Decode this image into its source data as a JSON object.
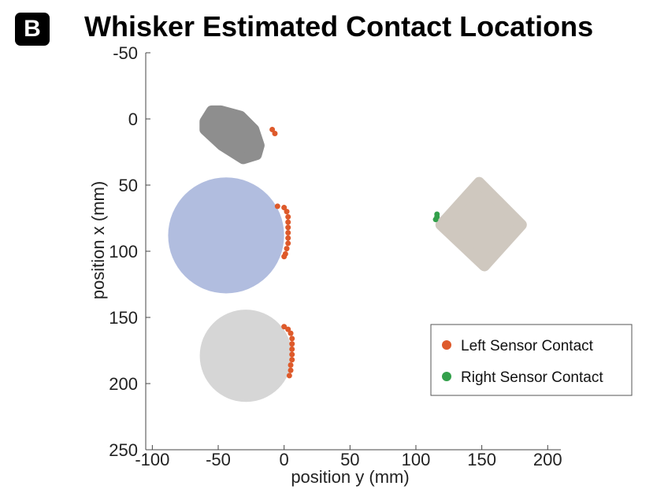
{
  "panel_label": "B",
  "chart_data": {
    "type": "scatter",
    "title": "Whisker Estimated Contact Locations",
    "xlabel": "position y (mm)",
    "ylabel": "position x (mm)",
    "xlim": [
      -105,
      210
    ],
    "ylim": [
      -50,
      250
    ],
    "y_inverted": true,
    "xticks": [
      -100,
      -50,
      0,
      50,
      100,
      150,
      200
    ],
    "yticks": [
      -50,
      0,
      50,
      100,
      150,
      200,
      250
    ],
    "xtick_labels": [
      "-100",
      "-50",
      "0",
      "50",
      "100",
      "150",
      "200"
    ],
    "ytick_labels": [
      "-50",
      "0",
      "50",
      "100",
      "150",
      "200",
      "250"
    ],
    "grid": false,
    "legend_position": "lower-right",
    "objects": [
      {
        "shape": "polygon",
        "color": "#8e8e8e",
        "vertices": [
          [
            -60,
            2
          ],
          [
            -55,
            -6
          ],
          [
            -48,
            -6
          ],
          [
            -33,
            -2
          ],
          [
            -23,
            8
          ],
          [
            -19,
            20
          ],
          [
            -21,
            27
          ],
          [
            -31,
            30
          ],
          [
            -47,
            20
          ],
          [
            -60,
            8
          ]
        ]
      },
      {
        "shape": "circle",
        "color": "#b1bddf",
        "center": [
          -44,
          88
        ],
        "radius": 44
      },
      {
        "shape": "circle",
        "color": "#d6d6d6",
        "center": [
          -29,
          179
        ],
        "radius": 35
      },
      {
        "shape": "polygon",
        "color": "#cfc8bf",
        "vertices": [
          [
            148,
            48
          ],
          [
            180,
            80
          ],
          [
            152,
            111
          ],
          [
            119,
            80
          ]
        ]
      }
    ],
    "series": [
      {
        "name": "Left Sensor Contact",
        "color": "#de5a2b",
        "x": [
          -9,
          -8,
          -7,
          -6,
          -5,
          -6,
          -7,
          -8,
          -9,
          -10,
          -9,
          -7,
          -6
        ],
        "y": [
          8,
          10,
          12,
          66,
          68,
          71,
          74,
          77,
          80,
          83,
          86,
          89,
          92
        ],
        "points": [
          [
            -9,
            8
          ],
          [
            -7,
            11
          ],
          [
            -5,
            66
          ],
          [
            0,
            67
          ],
          [
            2,
            70
          ],
          [
            3,
            74
          ],
          [
            3,
            78
          ],
          [
            3,
            82
          ],
          [
            3,
            86
          ],
          [
            3,
            90
          ],
          [
            3,
            94
          ],
          [
            2,
            98
          ],
          [
            1,
            102
          ],
          [
            0,
            104
          ],
          [
            0,
            157
          ],
          [
            3,
            159
          ],
          [
            5,
            162
          ],
          [
            6,
            166
          ],
          [
            6,
            170
          ],
          [
            6,
            174
          ],
          [
            6,
            178
          ],
          [
            6,
            182
          ],
          [
            5,
            186
          ],
          [
            5,
            190
          ],
          [
            4,
            194
          ]
        ]
      },
      {
        "name": "Right Sensor Contact",
        "color": "#33a04b",
        "points": [
          [
            116,
            72
          ],
          [
            116,
            74
          ],
          [
            115,
            76
          ]
        ]
      }
    ]
  }
}
